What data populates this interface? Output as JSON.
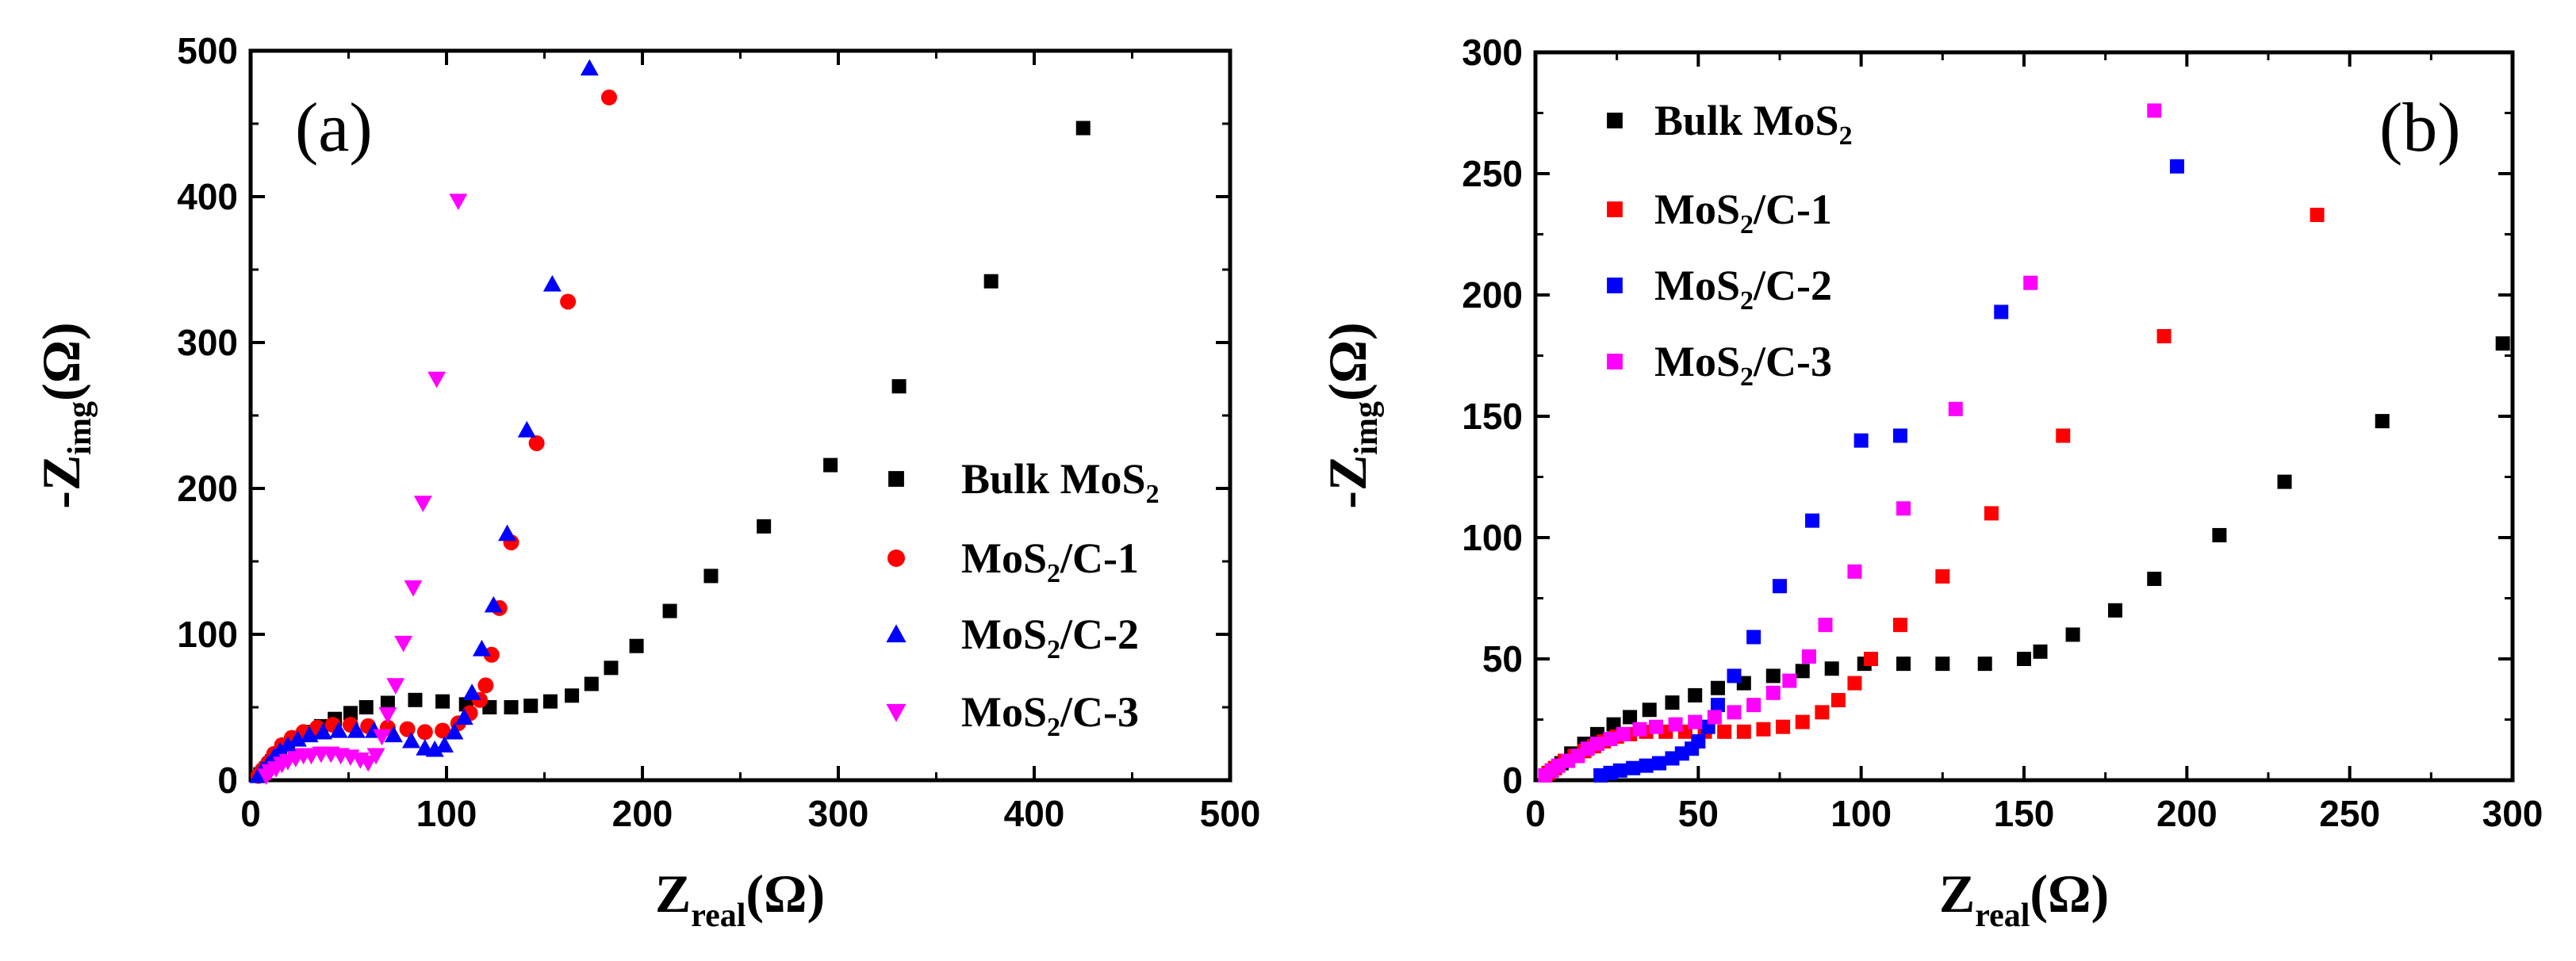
{
  "colors": {
    "black": "#000000",
    "red": "#ff0000",
    "blue": "#0000ff",
    "magenta": "#ff00ff"
  },
  "chart_data": [
    {
      "type": "scatter",
      "panel_label": "(a)",
      "xlabel": "Z",
      "xlabel_sub": "real",
      "xlabel_unit": "(Ω)",
      "ylabel": "-Z",
      "ylabel_sub": "img",
      "ylabel_unit": "(Ω)",
      "xlim": [
        0,
        500
      ],
      "ylim": [
        0,
        500
      ],
      "xticks": [
        0,
        100,
        200,
        300,
        400,
        500
      ],
      "yticks": [
        0,
        100,
        200,
        300,
        400,
        500
      ],
      "xtick_labels": [
        "0",
        "100",
        "200",
        "300",
        "400",
        "500"
      ],
      "ytick_labels": [
        "0",
        "100",
        "200",
        "300",
        "400",
        "500"
      ],
      "legend_position": "center-right",
      "series": [
        {
          "name": "Bulk MoS2",
          "label": "Bulk MoS",
          "label_sub": "2",
          "label_suffix": "",
          "marker": "square",
          "color": "#000000",
          "points": [
            [
              5,
              4
            ],
            [
              8,
              8
            ],
            [
              11,
              13
            ],
            [
              15,
              18
            ],
            [
              19,
              24
            ],
            [
              24,
              29
            ],
            [
              30,
              33
            ],
            [
              36,
              37
            ],
            [
              43,
              42
            ],
            [
              51,
              46
            ],
            [
              59,
              50
            ],
            [
              70,
              53
            ],
            [
              84,
              55
            ],
            [
              98,
              54
            ],
            [
              110,
              52
            ],
            [
              122,
              50
            ],
            [
              133,
              50
            ],
            [
              143,
              51
            ],
            [
              153,
              54
            ],
            [
              164,
              58
            ],
            [
              174,
              66
            ],
            [
              184,
              77
            ],
            [
              197,
              92
            ],
            [
              214,
              116
            ],
            [
              235,
              140
            ],
            [
              262,
              174
            ],
            [
              296,
              216
            ],
            [
              331,
              270
            ],
            [
              378,
              342
            ],
            [
              425,
              447
            ]
          ]
        },
        {
          "name": "MoS2/C-1",
          "label": "MoS",
          "label_sub": "2",
          "label_suffix": "/C-1",
          "marker": "circle",
          "color": "#ff0000",
          "points": [
            [
              4,
              3
            ],
            [
              6,
              7
            ],
            [
              9,
              12
            ],
            [
              12,
              18
            ],
            [
              16,
              24
            ],
            [
              21,
              29
            ],
            [
              27,
              33
            ],
            [
              34,
              36
            ],
            [
              42,
              38
            ],
            [
              51,
              38
            ],
            [
              60,
              37
            ],
            [
              70,
              36
            ],
            [
              80,
              35
            ],
            [
              89,
              33
            ],
            [
              98,
              34
            ],
            [
              106,
              39
            ],
            [
              112,
              46
            ],
            [
              117,
              55
            ],
            [
              120,
              65
            ],
            [
              123,
              86
            ],
            [
              127,
              118
            ],
            [
              133,
              163
            ],
            [
              146,
              231
            ],
            [
              162,
              328
            ],
            [
              183,
              468
            ]
          ]
        },
        {
          "name": "MoS2/C-2",
          "label": "MoS",
          "label_sub": "2",
          "label_suffix": "/C-2",
          "marker": "triangle-up",
          "color": "#0000ff",
          "points": [
            [
              4,
              3
            ],
            [
              6,
              7
            ],
            [
              9,
              11
            ],
            [
              12,
              16
            ],
            [
              15,
              20
            ],
            [
              19,
              24
            ],
            [
              24,
              28
            ],
            [
              30,
              31
            ],
            [
              37,
              33
            ],
            [
              45,
              34
            ],
            [
              54,
              34
            ],
            [
              63,
              34
            ],
            [
              73,
              31
            ],
            [
              82,
              27
            ],
            [
              89,
              22
            ],
            [
              94,
              21
            ],
            [
              99,
              24
            ],
            [
              104,
              33
            ],
            [
              109,
              43
            ],
            [
              113,
              60
            ],
            [
              118,
              90
            ],
            [
              124,
              120
            ],
            [
              131,
              169
            ],
            [
              141,
              240
            ],
            [
              154,
              340
            ],
            [
              173,
              488
            ]
          ]
        },
        {
          "name": "MoS2/C-3",
          "label": "MoS",
          "label_sub": "2",
          "label_suffix": "/C-3",
          "marker": "triangle-down",
          "color": "#ff00ff",
          "points": [
            [
              8,
              3
            ],
            [
              10,
              6
            ],
            [
              13,
              8
            ],
            [
              16,
              11
            ],
            [
              19,
              13
            ],
            [
              23,
              15
            ],
            [
              27,
              17
            ],
            [
              31,
              17
            ],
            [
              36,
              18
            ],
            [
              41,
              18
            ],
            [
              46,
              17
            ],
            [
              51,
              16
            ],
            [
              56,
              14
            ],
            [
              60,
              12
            ],
            [
              64,
              17
            ],
            [
              67,
              30
            ],
            [
              70,
              45
            ],
            [
              74,
              65
            ],
            [
              78,
              94
            ],
            [
              83,
              132
            ],
            [
              88,
              190
            ],
            [
              95,
              275
            ],
            [
              106,
              397
            ]
          ]
        }
      ]
    },
    {
      "type": "scatter",
      "panel_label": "(b)",
      "xlabel": "Z",
      "xlabel_sub": "real",
      "xlabel_unit": "(Ω)",
      "ylabel": "-Z",
      "ylabel_sub": "img",
      "ylabel_unit": "(Ω)",
      "xlim": [
        0,
        300
      ],
      "ylim": [
        0,
        300
      ],
      "xticks": [
        0,
        50,
        100,
        150,
        200,
        250,
        300
      ],
      "yticks": [
        0,
        50,
        100,
        150,
        200,
        250,
        300
      ],
      "xtick_labels": [
        "0",
        "50",
        "100",
        "150",
        "200",
        "250",
        "300"
      ],
      "ytick_labels": [
        "0",
        "50",
        "100",
        "150",
        "200",
        "250",
        "300"
      ],
      "legend_position": "top-left",
      "series": [
        {
          "name": "Bulk MoS2",
          "label": "Bulk MoS",
          "label_sub": "2",
          "label_suffix": "",
          "marker": "square",
          "color": "#000000",
          "points": [
            [
              5,
              4
            ],
            [
              8,
              7
            ],
            [
              11,
              11
            ],
            [
              15,
              15
            ],
            [
              19,
              19
            ],
            [
              24,
              23
            ],
            [
              29,
              26
            ],
            [
              35,
              29
            ],
            [
              42,
              32
            ],
            [
              49,
              35
            ],
            [
              56,
              38
            ],
            [
              64,
              40
            ],
            [
              73,
              43
            ],
            [
              82,
              45
            ],
            [
              91,
              46
            ],
            [
              101,
              48
            ],
            [
              113,
              48
            ],
            [
              125,
              48
            ],
            [
              138,
              48
            ],
            [
              150,
              50
            ],
            [
              155,
              53
            ],
            [
              165,
              60
            ],
            [
              178,
              70
            ],
            [
              190,
              83
            ],
            [
              210,
              101
            ],
            [
              230,
              123
            ],
            [
              260,
              148
            ],
            [
              297,
              180
            ]
          ]
        },
        {
          "name": "MoS2/C-1",
          "label": "MoS",
          "label_sub": "2",
          "label_suffix": "/C-1",
          "marker": "square",
          "color": "#ff0000",
          "points": [
            [
              4,
              3
            ],
            [
              6,
              5
            ],
            [
              9,
              8
            ],
            [
              12,
              10
            ],
            [
              15,
              12
            ],
            [
              18,
              14
            ],
            [
              21,
              16
            ],
            [
              25,
              18
            ],
            [
              29,
              19
            ],
            [
              34,
              20
            ],
            [
              40,
              20
            ],
            [
              46,
              20
            ],
            [
              52,
              20
            ],
            [
              58,
              20
            ],
            [
              64,
              20
            ],
            [
              70,
              21
            ],
            [
              76,
              22
            ],
            [
              82,
              24
            ],
            [
              88,
              28
            ],
            [
              93,
              33
            ],
            [
              98,
              40
            ],
            [
              103,
              50
            ],
            [
              112,
              64
            ],
            [
              125,
              84
            ],
            [
              140,
              110
            ],
            [
              162,
              142
            ],
            [
              193,
              183
            ],
            [
              240,
              233
            ]
          ]
        },
        {
          "name": "MoS2/C-2",
          "label": "MoS",
          "label_sub": "2",
          "label_suffix": "/C-2",
          "marker": "square",
          "color": "#0000ff",
          "points": [
            [
              20,
              2
            ],
            [
              23,
              3
            ],
            [
              26,
              4
            ],
            [
              30,
              5
            ],
            [
              34,
              6
            ],
            [
              38,
              7
            ],
            [
              42,
              9
            ],
            [
              45,
              11
            ],
            [
              48,
              13
            ],
            [
              50,
              16
            ],
            [
              53,
              22
            ],
            [
              56,
              31
            ],
            [
              61,
              43
            ],
            [
              67,
              59
            ],
            [
              75,
              80
            ],
            [
              85,
              107
            ],
            [
              100,
              140
            ],
            [
              112,
              142
            ],
            [
              143,
              193
            ],
            [
              197,
              253
            ]
          ]
        },
        {
          "name": "MoS2/C-3",
          "label": "MoS",
          "label_sub": "2",
          "label_suffix": "/C-3",
          "marker": "square",
          "color": "#ff00ff",
          "points": [
            [
              3,
              2
            ],
            [
              5,
              4
            ],
            [
              7,
              6
            ],
            [
              10,
              8
            ],
            [
              13,
              10
            ],
            [
              16,
              13
            ],
            [
              19,
              15
            ],
            [
              23,
              17
            ],
            [
              27,
              19
            ],
            [
              32,
              21
            ],
            [
              37,
              22
            ],
            [
              43,
              23
            ],
            [
              49,
              24
            ],
            [
              55,
              26
            ],
            [
              61,
              28
            ],
            [
              67,
              31
            ],
            [
              73,
              36
            ],
            [
              78,
              41
            ],
            [
              84,
              51
            ],
            [
              89,
              64
            ],
            [
              98,
              86
            ],
            [
              113,
              112
            ],
            [
              129,
              153
            ],
            [
              152,
              205
            ],
            [
              190,
              276
            ]
          ]
        }
      ]
    }
  ]
}
